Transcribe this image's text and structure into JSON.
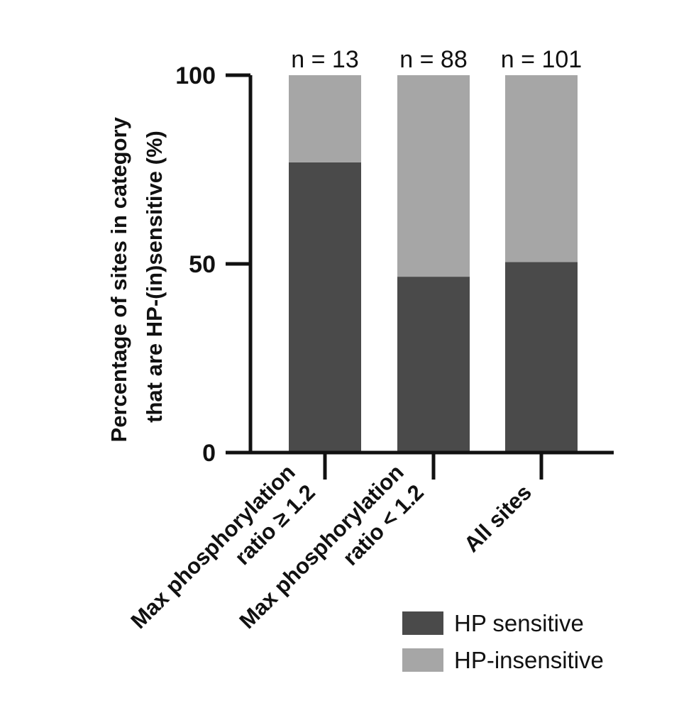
{
  "chart_data": {
    "type": "bar",
    "stacked": true,
    "ylabel": [
      "Percentage of sites in category",
      "that are HP-(in)sensitive (%)"
    ],
    "ylim": [
      0,
      100
    ],
    "yticks": [
      0,
      50,
      100
    ],
    "categories": [
      [
        "Max phosphorylation",
        "ratio ≥ 1.2"
      ],
      [
        "Max phosphorylation",
        "ratio < 1.2"
      ],
      [
        "All sites"
      ]
    ],
    "n_labels": [
      "n = 13",
      "n = 88",
      "n = 101"
    ],
    "series": [
      {
        "name": "HP sensitive",
        "color": "#4a4a4a",
        "values": [
          76.9,
          46.6,
          50.5
        ]
      },
      {
        "name": "HP-insensitive",
        "color": "#a6a6a6",
        "values": [
          23.1,
          53.4,
          49.5
        ]
      }
    ],
    "legend_position": "bottom-right"
  }
}
